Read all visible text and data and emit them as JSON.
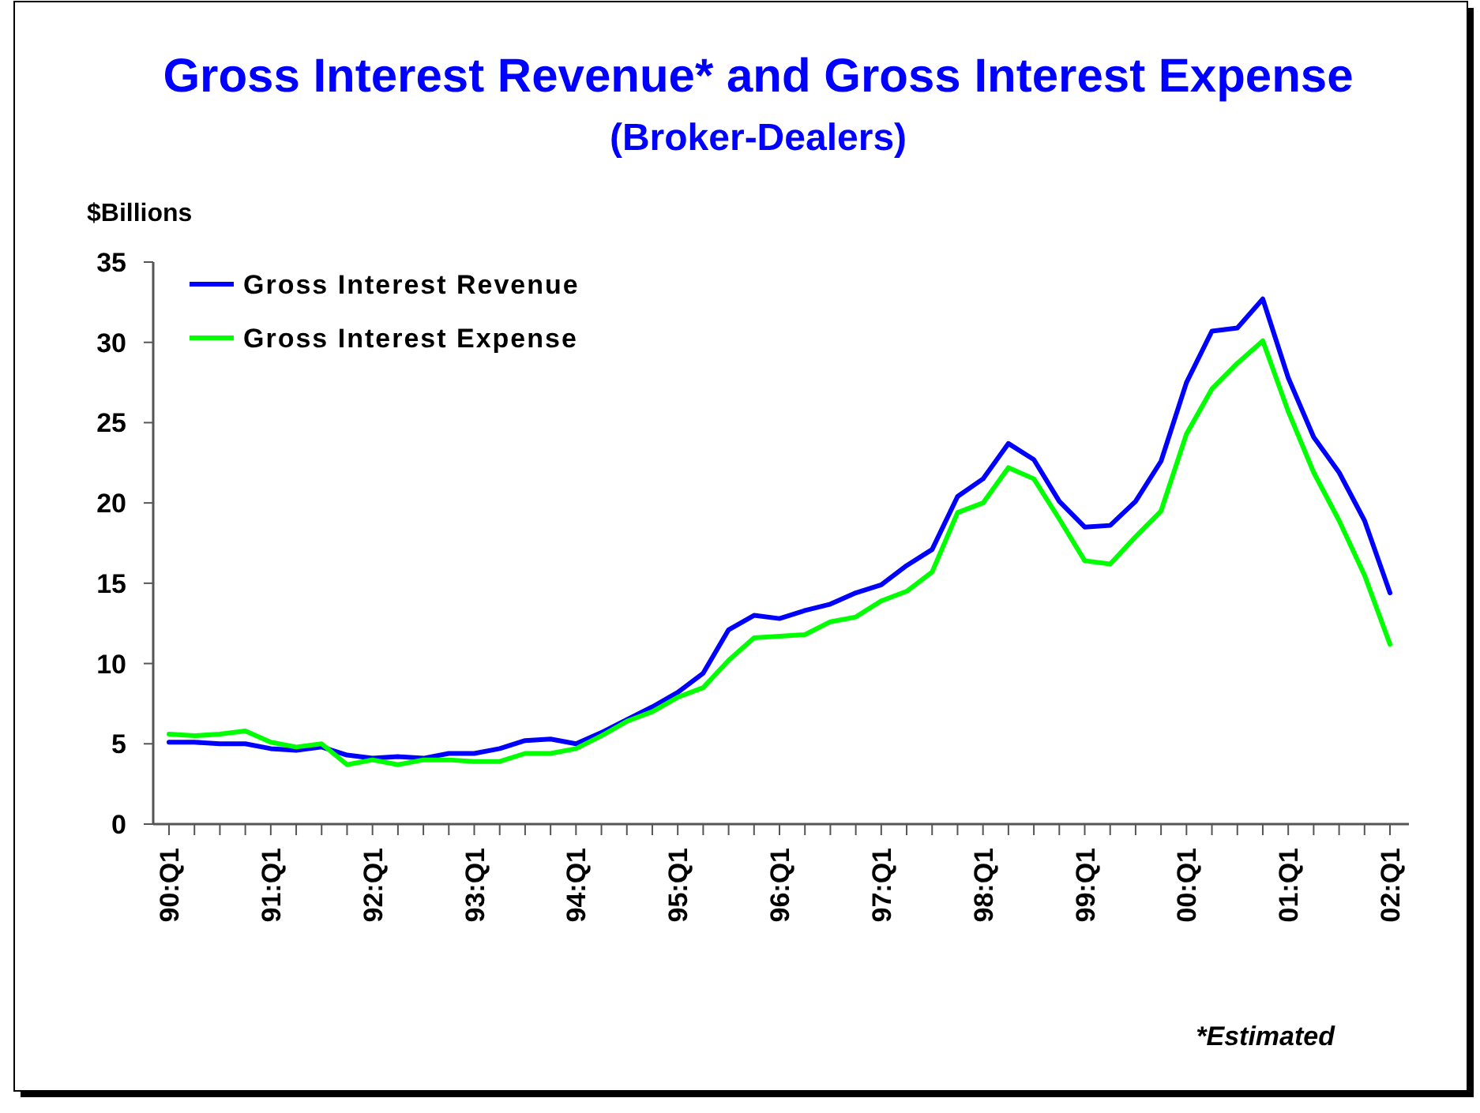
{
  "chart_data": {
    "type": "line",
    "title": "Gross Interest Revenue* and Gross Interest Expense",
    "subtitle": "(Broker-Dealers)",
    "ylabel": "$Billions",
    "categories": [
      "90:Q1",
      null,
      null,
      null,
      "91:Q1",
      null,
      null,
      null,
      "92:Q1",
      null,
      null,
      null,
      "93:Q1",
      null,
      null,
      null,
      "94:Q1",
      null,
      null,
      null,
      "95:Q1",
      null,
      null,
      null,
      "96:Q1",
      null,
      null,
      null,
      "97:Q1",
      null,
      null,
      null,
      "98:Q1",
      null,
      null,
      null,
      "99:Q1",
      null,
      null,
      null,
      "00:Q1",
      null,
      null,
      null,
      "01:Q1",
      null,
      null,
      null,
      "02:Q1"
    ],
    "series": [
      {
        "name": "Gross Interest Revenue",
        "color": "#0000ff",
        "values": [
          5.1,
          5.1,
          5.0,
          5.0,
          4.7,
          4.6,
          4.8,
          4.3,
          4.1,
          4.2,
          4.1,
          4.4,
          4.4,
          4.7,
          5.2,
          5.3,
          5.0,
          5.7,
          6.5,
          7.3,
          8.2,
          9.4,
          12.1,
          13.0,
          12.8,
          13.3,
          13.7,
          14.4,
          14.9,
          16.1,
          17.1,
          20.4,
          21.5,
          23.7,
          22.7,
          20.1,
          18.5,
          18.6,
          20.1,
          22.6,
          27.5,
          30.7,
          30.9,
          32.7,
          27.8,
          24.1,
          21.9,
          18.9,
          14.4
        ]
      },
      {
        "name": "Gross Interest Expense",
        "color": "#00ff00",
        "values": [
          5.6,
          5.5,
          5.6,
          5.8,
          5.1,
          4.8,
          5.0,
          3.7,
          4.0,
          3.7,
          4.0,
          4.0,
          3.9,
          3.9,
          4.4,
          4.4,
          4.7,
          5.5,
          6.4,
          7.0,
          7.9,
          8.5,
          10.2,
          11.6,
          11.7,
          11.8,
          12.6,
          12.9,
          13.9,
          14.5,
          15.7,
          19.4,
          20.0,
          22.2,
          21.5,
          19.0,
          16.4,
          16.2,
          17.9,
          19.5,
          24.3,
          27.1,
          28.7,
          30.1,
          25.7,
          21.9,
          18.9,
          15.5,
          11.2
        ]
      }
    ],
    "ylim": [
      0,
      35
    ],
    "yticks": [
      0,
      5,
      10,
      15,
      20,
      25,
      30,
      35
    ],
    "grid": false,
    "legend": "top left",
    "line_style": "solid",
    "marker": "none",
    "annotations": [
      "*Estimated"
    ]
  }
}
